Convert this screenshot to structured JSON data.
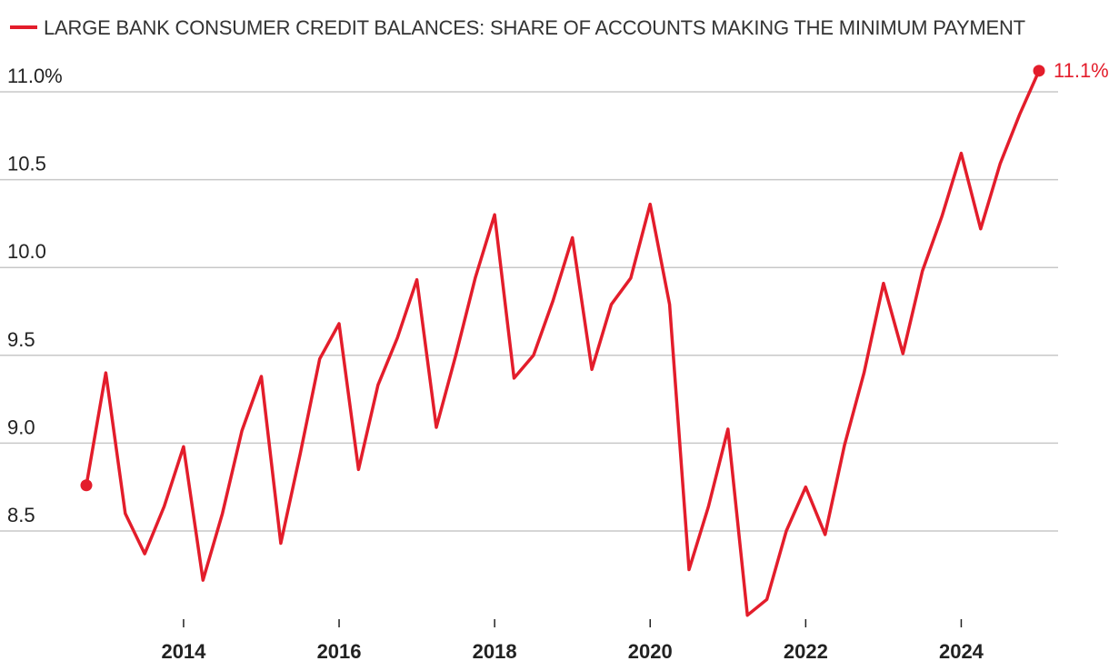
{
  "colors": {
    "series": "#e31d2b",
    "grid": "#c8c8c8",
    "text": "#222222"
  },
  "chart_data": {
    "type": "line",
    "title": "",
    "xlabel": "",
    "ylabel": "",
    "legend": {
      "placement": "top-left",
      "entries": [
        "LARGE BANK CONSUMER CREDIT BALANCES: SHARE OF ACCOUNTS MAKING THE MINIMUM PAYMENT"
      ]
    },
    "grid": true,
    "xlim": [
      2012.5,
      2025.25
    ],
    "ylim": [
      8.0,
      11.15
    ],
    "y_ticks": [
      {
        "value": 11.0,
        "label": "11.0%"
      },
      {
        "value": 10.5,
        "label": "10.5"
      },
      {
        "value": 10.0,
        "label": "10.0"
      },
      {
        "value": 9.5,
        "label": "9.5"
      },
      {
        "value": 9.0,
        "label": "9.0"
      },
      {
        "value": 8.5,
        "label": "8.5"
      }
    ],
    "x_ticks": [
      {
        "value": 2014,
        "label": "2014"
      },
      {
        "value": 2016,
        "label": "2016"
      },
      {
        "value": 2018,
        "label": "2018"
      },
      {
        "value": 2020,
        "label": "2020"
      },
      {
        "value": 2022,
        "label": "2022"
      },
      {
        "value": 2024,
        "label": "2024"
      }
    ],
    "series": [
      {
        "name": "LARGE BANK CONSUMER CREDIT BALANCES: SHARE OF ACCOUNTS MAKING THE MINIMUM PAYMENT",
        "end_label": "11.1%",
        "points": [
          [
            2012.75,
            8.76
          ],
          [
            2013.0,
            9.4
          ],
          [
            2013.25,
            8.6
          ],
          [
            2013.5,
            8.37
          ],
          [
            2013.75,
            8.64
          ],
          [
            2014.0,
            8.98
          ],
          [
            2014.25,
            8.22
          ],
          [
            2014.5,
            8.6
          ],
          [
            2014.75,
            9.07
          ],
          [
            2015.0,
            9.38
          ],
          [
            2015.25,
            8.43
          ],
          [
            2015.5,
            8.94
          ],
          [
            2015.75,
            9.48
          ],
          [
            2016.0,
            9.68
          ],
          [
            2016.25,
            8.85
          ],
          [
            2016.5,
            9.33
          ],
          [
            2016.75,
            9.6
          ],
          [
            2017.0,
            9.93
          ],
          [
            2017.25,
            9.09
          ],
          [
            2017.5,
            9.5
          ],
          [
            2017.75,
            9.94
          ],
          [
            2018.0,
            10.3
          ],
          [
            2018.25,
            9.37
          ],
          [
            2018.5,
            9.5
          ],
          [
            2018.75,
            9.81
          ],
          [
            2019.0,
            10.17
          ],
          [
            2019.25,
            9.42
          ],
          [
            2019.5,
            9.79
          ],
          [
            2019.75,
            9.94
          ],
          [
            2020.0,
            10.36
          ],
          [
            2020.25,
            9.79
          ],
          [
            2020.5,
            8.28
          ],
          [
            2020.75,
            8.64
          ],
          [
            2021.0,
            9.08
          ],
          [
            2021.25,
            8.02
          ],
          [
            2021.5,
            8.11
          ],
          [
            2021.75,
            8.5
          ],
          [
            2022.0,
            8.75
          ],
          [
            2022.25,
            8.48
          ],
          [
            2022.5,
            8.99
          ],
          [
            2022.75,
            9.4
          ],
          [
            2023.0,
            9.91
          ],
          [
            2023.25,
            9.51
          ],
          [
            2023.5,
            9.98
          ],
          [
            2023.75,
            10.29
          ],
          [
            2024.0,
            10.65
          ],
          [
            2024.25,
            10.22
          ],
          [
            2024.5,
            10.59
          ],
          [
            2024.75,
            10.87
          ],
          [
            2025.0,
            11.12
          ]
        ]
      }
    ]
  }
}
